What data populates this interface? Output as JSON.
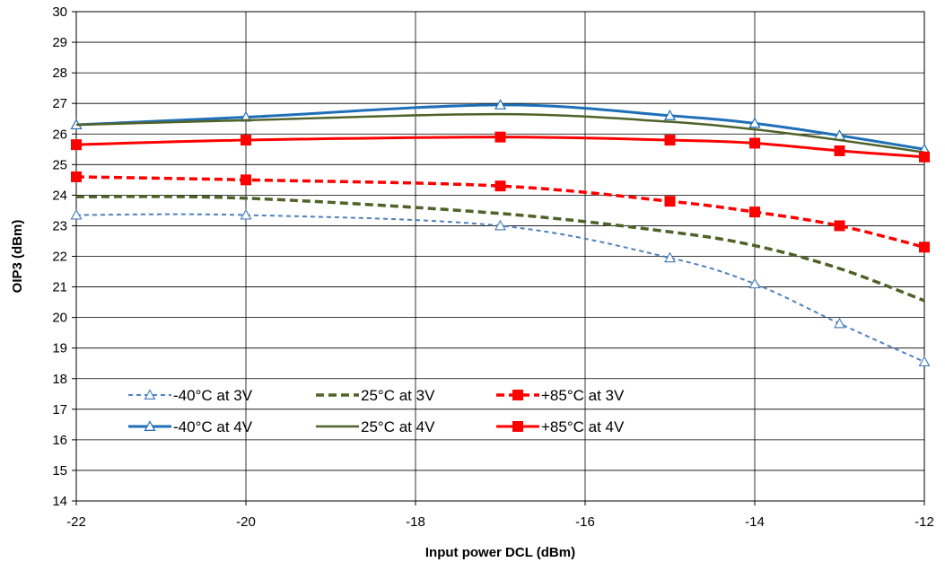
{
  "chart_data": {
    "type": "line",
    "title": "",
    "xlabel": "Input power DCL (dBm)",
    "ylabel": "OIP3  (dBm)",
    "xlim": [
      -22,
      -12
    ],
    "ylim": [
      14,
      30
    ],
    "xticks": [
      -22,
      -20,
      -18,
      -16,
      -14,
      -12
    ],
    "yticks": [
      14,
      15,
      16,
      17,
      18,
      19,
      20,
      21,
      22,
      23,
      24,
      25,
      26,
      27,
      28,
      29,
      30
    ],
    "grid": true,
    "legend_position": "lower-left",
    "series": [
      {
        "name": "-40°C at 3V",
        "color": "#4F81BD",
        "line": "dashed",
        "marker": "triangle",
        "x": [
          -22,
          -20,
          -17,
          -15,
          -14,
          -13,
          -12
        ],
        "y": [
          23.35,
          23.35,
          23.0,
          21.95,
          21.1,
          19.8,
          18.55
        ]
      },
      {
        "name": "25°C at 3V",
        "color": "#4F6228",
        "line": "dashed",
        "marker": "none",
        "x": [
          -22,
          -20,
          -17,
          -15,
          -14,
          -13,
          -12
        ],
        "y": [
          23.95,
          23.9,
          23.4,
          22.8,
          22.35,
          21.6,
          20.55
        ]
      },
      {
        "name": "+85°C at 3V",
        "color": "#FF0000",
        "line": "dashed",
        "marker": "square",
        "x": [
          -22,
          -20,
          -17,
          -15,
          -14,
          -13,
          -12
        ],
        "y": [
          24.6,
          24.5,
          24.3,
          23.8,
          23.45,
          23.0,
          22.3
        ]
      },
      {
        "name": "-40°C at 4V",
        "color": "#1F6FB8",
        "line": "solid",
        "marker": "triangle",
        "x": [
          -22,
          -20,
          -17,
          -15,
          -14,
          -13,
          -12
        ],
        "y": [
          26.3,
          26.55,
          26.95,
          26.6,
          26.35,
          25.95,
          25.5
        ]
      },
      {
        "name": "25°C at 4V",
        "color": "#4F6228",
        "line": "solid",
        "marker": "none",
        "x": [
          -22,
          -20,
          -17,
          -15,
          -14,
          -13,
          -12
        ],
        "y": [
          26.3,
          26.45,
          26.65,
          26.4,
          26.15,
          25.8,
          25.4
        ]
      },
      {
        "name": "+85°C at 4V",
        "color": "#FF0000",
        "line": "solid",
        "marker": "square",
        "x": [
          -22,
          -20,
          -17,
          -15,
          -14,
          -13,
          -12
        ],
        "y": [
          25.65,
          25.8,
          25.9,
          25.8,
          25.7,
          25.45,
          25.25
        ]
      }
    ]
  }
}
